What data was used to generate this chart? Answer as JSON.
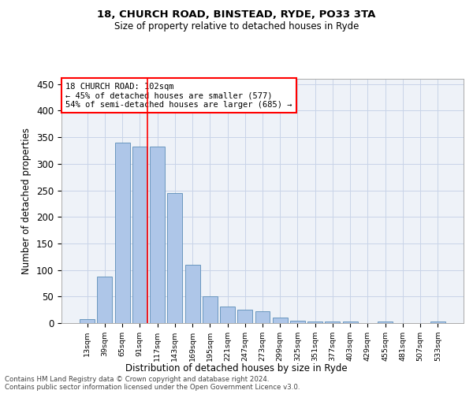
{
  "title1": "18, CHURCH ROAD, BINSTEAD, RYDE, PO33 3TA",
  "title2": "Size of property relative to detached houses in Ryde",
  "xlabel": "Distribution of detached houses by size in Ryde",
  "ylabel": "Number of detached properties",
  "footnote1": "Contains HM Land Registry data © Crown copyright and database right 2024.",
  "footnote2": "Contains public sector information licensed under the Open Government Licence v3.0.",
  "annotation_line1": "18 CHURCH ROAD: 102sqm",
  "annotation_line2": "← 45% of detached houses are smaller (577)",
  "annotation_line3": "54% of semi-detached houses are larger (685) →",
  "bar_labels": [
    "13sqm",
    "39sqm",
    "65sqm",
    "91sqm",
    "117sqm",
    "143sqm",
    "169sqm",
    "195sqm",
    "221sqm",
    "247sqm",
    "273sqm",
    "299sqm",
    "325sqm",
    "351sqm",
    "377sqm",
    "403sqm",
    "429sqm",
    "455sqm",
    "481sqm",
    "507sqm",
    "533sqm"
  ],
  "bar_values": [
    7,
    88,
    340,
    333,
    333,
    245,
    110,
    50,
    31,
    25,
    22,
    10,
    5,
    3,
    3,
    3,
    0,
    3,
    0,
    0,
    3
  ],
  "bar_color": "#aec6e8",
  "bar_edge_color": "#5b8db8",
  "grid_color": "#c8d4e8",
  "background_color": "#eef2f8",
  "red_line_x": 3.42,
  "ylim": [
    0,
    460
  ],
  "yticks": [
    0,
    50,
    100,
    150,
    200,
    250,
    300,
    350,
    400,
    450
  ]
}
